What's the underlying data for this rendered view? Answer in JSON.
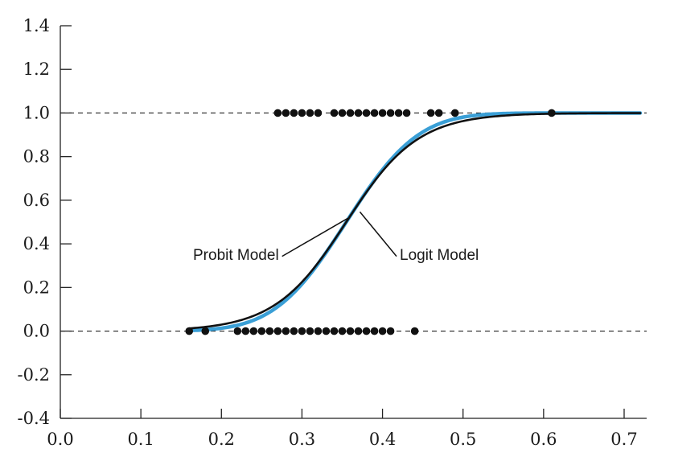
{
  "chart_data": {
    "type": "line",
    "title": "",
    "xlabel": "",
    "ylabel": "",
    "xlim": [
      0.0,
      0.72
    ],
    "ylim": [
      -0.4,
      1.4
    ],
    "x_ticks": [
      "0.0",
      "0.1",
      "0.2",
      "0.3",
      "0.4",
      "0.5",
      "0.6",
      "0.7"
    ],
    "y_ticks": [
      "-0.4",
      "-0.2",
      "0.0",
      "0.2",
      "0.4",
      "0.6",
      "0.8",
      "1.0",
      "1.2",
      "1.4"
    ],
    "x_tick_values": [
      0.0,
      0.1,
      0.2,
      0.3,
      0.4,
      0.5,
      0.6,
      0.7
    ],
    "y_tick_values": [
      -0.4,
      -0.2,
      0.0,
      0.2,
      0.4,
      0.6,
      0.8,
      1.0,
      1.2,
      1.4
    ],
    "grid": false,
    "reference_lines": [
      0.0,
      1.0
    ],
    "series": [
      {
        "name": "Probit Model",
        "model": "probit",
        "color": "#3a9fd6",
        "x": [
          0.16,
          0.18,
          0.2,
          0.22,
          0.24,
          0.26,
          0.28,
          0.3,
          0.32,
          0.34,
          0.36,
          0.38,
          0.4,
          0.42,
          0.44,
          0.46,
          0.48,
          0.5,
          0.52,
          0.54,
          0.56,
          0.58,
          0.6,
          0.62,
          0.64,
          0.66,
          0.68,
          0.7,
          0.72
        ],
        "y": [
          0.005,
          0.011,
          0.023,
          0.043,
          0.076,
          0.124,
          0.19,
          0.274,
          0.373,
          0.48,
          0.587,
          0.686,
          0.771,
          0.84,
          0.892,
          0.93,
          0.956,
          0.973,
          0.984,
          0.991,
          0.995,
          0.997,
          0.998,
          0.999,
          0.999,
          1.0,
          1.0,
          1.0,
          1.0
        ]
      },
      {
        "name": "Logit Model",
        "model": "logit",
        "color": "#111111",
        "x": [
          0.16,
          0.18,
          0.2,
          0.22,
          0.24,
          0.26,
          0.28,
          0.3,
          0.32,
          0.34,
          0.36,
          0.38,
          0.4,
          0.42,
          0.44,
          0.46,
          0.48,
          0.5,
          0.52,
          0.54,
          0.56,
          0.58,
          0.6,
          0.62,
          0.64,
          0.66,
          0.68,
          0.7,
          0.72
        ],
        "y": [
          0.01,
          0.018,
          0.031,
          0.052,
          0.086,
          0.136,
          0.204,
          0.287,
          0.38,
          0.477,
          0.574,
          0.665,
          0.745,
          0.812,
          0.866,
          0.906,
          0.936,
          0.957,
          0.971,
          0.981,
          0.987,
          0.992,
          0.995,
          0.996,
          0.997,
          0.998,
          0.999,
          0.999,
          0.999
        ]
      }
    ],
    "observations": {
      "y1": [
        0.27,
        0.28,
        0.29,
        0.3,
        0.31,
        0.32,
        0.34,
        0.35,
        0.36,
        0.37,
        0.38,
        0.39,
        0.4,
        0.41,
        0.42,
        0.43,
        0.46,
        0.47,
        0.49,
        0.61
      ],
      "y0": [
        0.16,
        0.18,
        0.22,
        0.23,
        0.24,
        0.25,
        0.26,
        0.27,
        0.28,
        0.29,
        0.3,
        0.31,
        0.32,
        0.33,
        0.34,
        0.35,
        0.36,
        0.37,
        0.38,
        0.39,
        0.4,
        0.41,
        0.44
      ]
    },
    "annotations": [
      {
        "text": "Probit Model",
        "target_series": "Probit Model",
        "target_x": 0.36
      },
      {
        "text": "Logit Model",
        "target_series": "Logit Model",
        "target_x": 0.37
      }
    ]
  }
}
